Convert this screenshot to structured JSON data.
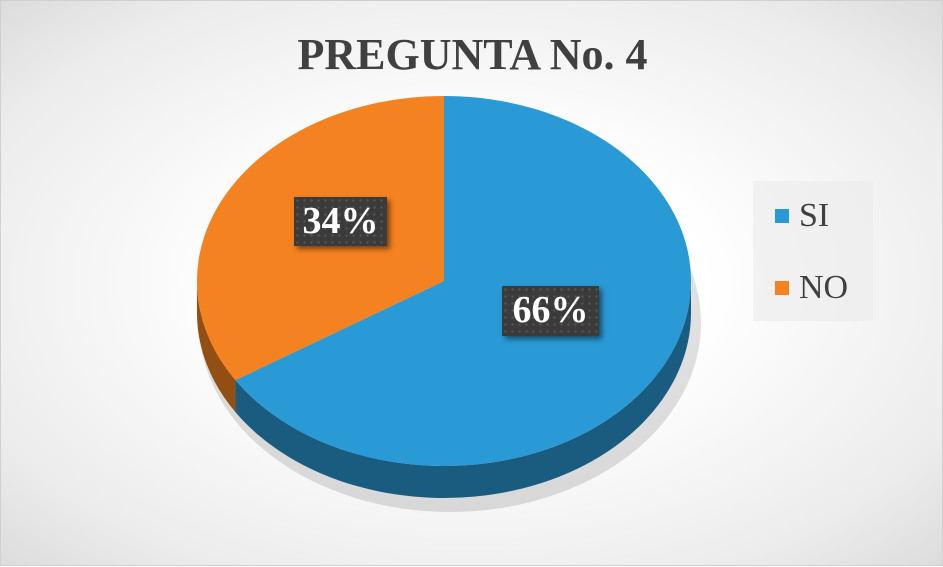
{
  "chart_data": {
    "type": "pie",
    "title": "PREGUNTA No. 4",
    "categories": [
      "SI",
      "NO"
    ],
    "values": [
      66,
      34
    ],
    "data_labels": [
      "66%",
      "34%"
    ],
    "colors": [
      "#2a9ad6",
      "#f58220"
    ],
    "legend_position": "right",
    "style": "3d"
  }
}
